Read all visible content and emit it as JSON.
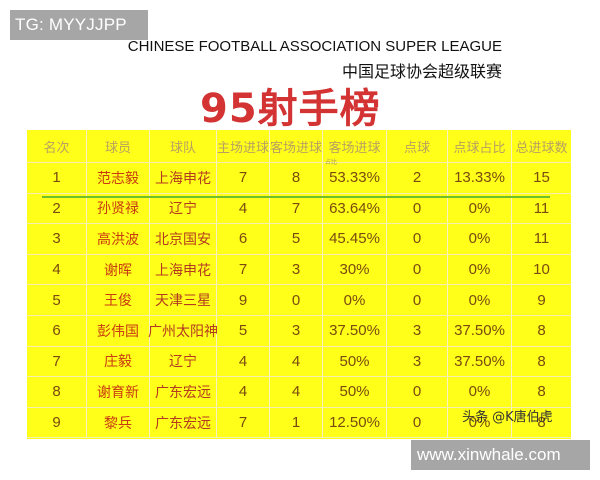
{
  "watermarks": {
    "top_left": "TG: MYYJJPP",
    "bottom_right": "www.xinwhale.com",
    "credit": "头条 @K唐伯虎"
  },
  "titles": {
    "english": "CHINESE FOOTBALL ASSOCIATION SUPER LEAGUE",
    "chinese": "中国足球协会超级联赛",
    "main": "95射手榜"
  },
  "colors": {
    "table_bg": "#ffff1a",
    "main_title": "#d33333",
    "green_line": "#6fbf2a",
    "badge_bg": "#a6a6a6"
  },
  "table": {
    "headers": [
      "名次",
      "球员",
      "球队",
      "主场进球",
      "客场进球",
      "客场进球",
      "点球",
      "点球占比",
      "总进球数"
    ],
    "header_sub": "占比",
    "rows": [
      {
        "rank": "1",
        "player": "范志毅",
        "team": "上海申花",
        "home": "7",
        "away": "8",
        "away_pct": "53.33%",
        "pen": "2",
        "pen_pct": "13.33%",
        "total": "15"
      },
      {
        "rank": "2",
        "player": "孙贤禄",
        "team": "辽宁",
        "home": "4",
        "away": "7",
        "away_pct": "63.64%",
        "pen": "0",
        "pen_pct": "0%",
        "total": "11"
      },
      {
        "rank": "3",
        "player": "高洪波",
        "team": "北京国安",
        "home": "6",
        "away": "5",
        "away_pct": "45.45%",
        "pen": "0",
        "pen_pct": "0%",
        "total": "11"
      },
      {
        "rank": "4",
        "player": "谢晖",
        "team": "上海申花",
        "home": "7",
        "away": "3",
        "away_pct": "30%",
        "pen": "0",
        "pen_pct": "0%",
        "total": "10"
      },
      {
        "rank": "5",
        "player": "王俊",
        "team": "天津三星",
        "home": "9",
        "away": "0",
        "away_pct": "0%",
        "pen": "0",
        "pen_pct": "0%",
        "total": "9"
      },
      {
        "rank": "6",
        "player": "彭伟国",
        "team": "广州太阳神",
        "home": "5",
        "away": "3",
        "away_pct": "37.50%",
        "pen": "3",
        "pen_pct": "37.50%",
        "total": "8"
      },
      {
        "rank": "7",
        "player": "庄毅",
        "team": "辽宁",
        "home": "4",
        "away": "4",
        "away_pct": "50%",
        "pen": "3",
        "pen_pct": "37.50%",
        "total": "8"
      },
      {
        "rank": "8",
        "player": "谢育新",
        "team": "广东宏远",
        "home": "4",
        "away": "4",
        "away_pct": "50%",
        "pen": "0",
        "pen_pct": "0%",
        "total": "8"
      },
      {
        "rank": "9",
        "player": "黎兵",
        "team": "广东宏远",
        "home": "7",
        "away": "1",
        "away_pct": "12.50%",
        "pen": "0",
        "pen_pct": "0%",
        "total": "8"
      }
    ]
  }
}
